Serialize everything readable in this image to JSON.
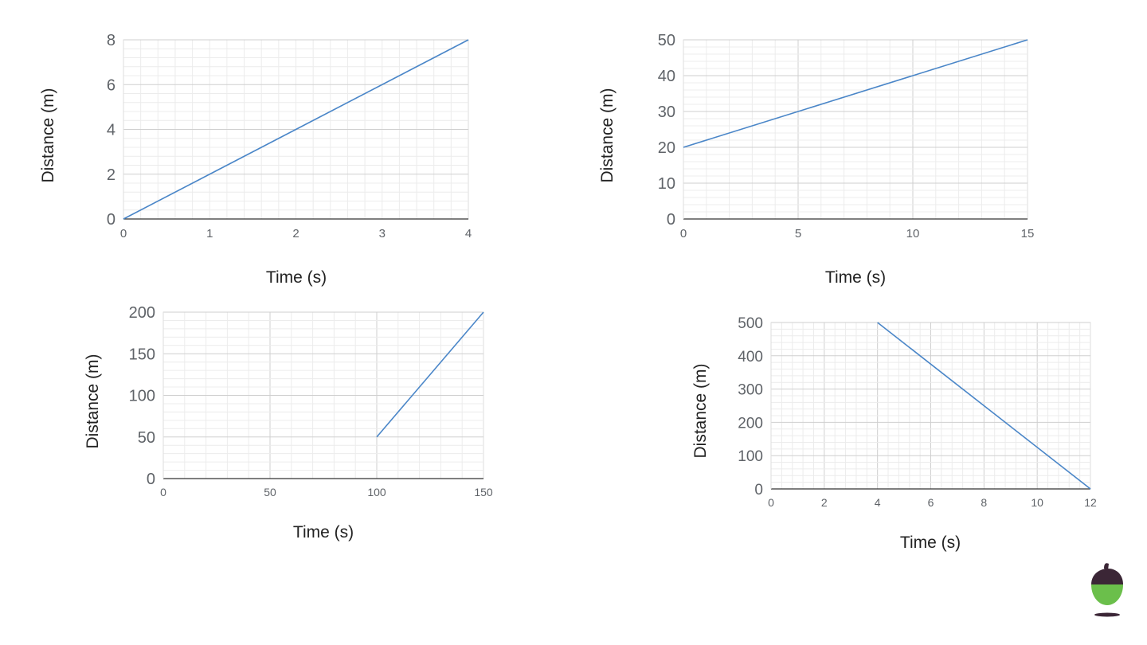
{
  "chart_data": [
    {
      "type": "line",
      "title": "",
      "xlabel": "Time (s)",
      "ylabel": "Distance (m)",
      "xlim": [
        0,
        4
      ],
      "ylim": [
        0,
        8
      ],
      "xticks": [
        0,
        1,
        2,
        3,
        4
      ],
      "yticks": [
        0,
        2,
        4,
        6,
        8
      ],
      "xminor": 0.2,
      "yminor": 0.4,
      "xmajor": 4,
      "ymajor": 2,
      "grid": true,
      "series": [
        {
          "color": "#4a86c8",
          "points": [
            [
              0,
              0
            ],
            [
              4,
              8
            ]
          ]
        }
      ]
    },
    {
      "type": "line",
      "title": "",
      "xlabel": "Time (s)",
      "ylabel": "Distance (m)",
      "xlim": [
        0,
        15
      ],
      "ylim": [
        0,
        50
      ],
      "xticks": [
        0,
        5,
        10,
        15
      ],
      "yticks": [
        0,
        10,
        20,
        30,
        40,
        50
      ],
      "xminor": 1,
      "yminor": 2,
      "xmajor": 5,
      "ymajor": 10,
      "grid": true,
      "series": [
        {
          "color": "#4a86c8",
          "points": [
            [
              0,
              20
            ],
            [
              15,
              50
            ]
          ]
        }
      ]
    },
    {
      "type": "line",
      "title": "",
      "xlabel": "Time (s)",
      "ylabel": "Distance (m)",
      "xlim": [
        0,
        150
      ],
      "ylim": [
        0,
        200
      ],
      "xticks": [
        0,
        50,
        100,
        150
      ],
      "yticks": [
        0,
        50,
        100,
        150,
        200
      ],
      "xminor": 10,
      "yminor": 10,
      "xmajor": 50,
      "ymajor": 50,
      "grid": true,
      "series": [
        {
          "color": "#4a86c8",
          "points": [
            [
              100,
              50
            ],
            [
              150,
              200
            ]
          ]
        }
      ]
    },
    {
      "type": "line",
      "title": "",
      "xlabel": "Time (s)",
      "ylabel": "Distance (m)",
      "xlim": [
        0,
        12
      ],
      "ylim": [
        0,
        500
      ],
      "xticks": [
        0,
        2,
        4,
        6,
        8,
        10,
        12
      ],
      "yticks": [
        0,
        100,
        200,
        300,
        400,
        500
      ],
      "xminor": 0.4,
      "yminor": 20,
      "xmajor": 2,
      "ymajor": 100,
      "grid": true,
      "series": [
        {
          "color": "#4a86c8",
          "points": [
            [
              4,
              500
            ],
            [
              12,
              0
            ]
          ]
        }
      ]
    }
  ],
  "logo": {
    "name": "acorn-logo-icon",
    "cap_color": "#3b2636",
    "body_color": "#6bbf4b"
  }
}
